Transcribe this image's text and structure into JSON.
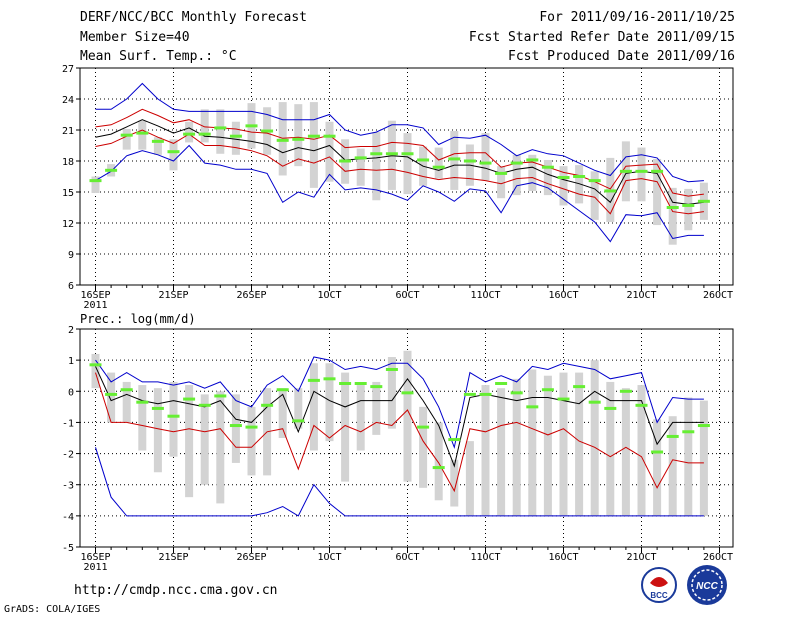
{
  "header": {
    "title": "DERF/NCC/BCC Monthly Forecast",
    "member": "Member Size=40",
    "variable": "Mean Surf. Temp.: °C",
    "period": "For 2011/09/16-2011/10/25",
    "started": "Fcst Started Refer Date 2011/09/15",
    "produced": "Fcst Produced Date 2011/09/16"
  },
  "footer": {
    "url": "http://cmdp.ncc.cma.gov.cn",
    "grads": "GrADS: COLA/IGES",
    "logo1": "BCC",
    "logo2": "NCC"
  },
  "colors": {
    "max": "#0000cc",
    "min": "#0000cc",
    "p_hi": "#cc0000",
    "p_lo": "#cc0000",
    "mean": "#000000",
    "box": "#d3d3d3",
    "obs": "#66ee33"
  },
  "chart_data": [
    {
      "type": "line",
      "title": "Mean Surf. Temp.: °C",
      "ylim": [
        6,
        27
      ],
      "yticks": [
        6,
        9,
        12,
        15,
        18,
        21,
        24,
        27
      ],
      "xlim": [
        1,
        40
      ],
      "xticks": [
        {
          "day": 1,
          "label": "16SEP",
          "sub": "2011"
        },
        {
          "day": 6,
          "label": "21SEP"
        },
        {
          "day": 11,
          "label": "26SEP"
        },
        {
          "day": 16,
          "label": "1OCT"
        },
        {
          "day": 21,
          "label": "6OCT"
        },
        {
          "day": 26,
          "label": "11OCT"
        },
        {
          "day": 31,
          "label": "16OCT"
        },
        {
          "day": 36,
          "label": "21OCT"
        },
        {
          "day": 41,
          "label": "26OCT"
        }
      ],
      "grid": true,
      "x": [
        1,
        2,
        3,
        4,
        5,
        6,
        7,
        8,
        9,
        10,
        11,
        12,
        13,
        14,
        15,
        16,
        17,
        18,
        19,
        20,
        21,
        22,
        23,
        24,
        25,
        26,
        27,
        28,
        29,
        30,
        31,
        32,
        33,
        34,
        35,
        36,
        37,
        38,
        39,
        40
      ],
      "series": [
        {
          "name": "max",
          "values": [
            23,
            23,
            24,
            25.5,
            24,
            23,
            22.8,
            22.8,
            22.8,
            22.8,
            22.8,
            22.5,
            22,
            22,
            22,
            22.5,
            21,
            20.5,
            20.8,
            21.5,
            21.5,
            21.2,
            19.6,
            20.3,
            20.2,
            20.5,
            19.6,
            18.5,
            19.1,
            18.7,
            18.5,
            17.8,
            17.1,
            16.6,
            18.4,
            18.6,
            18.3,
            16.5,
            16,
            16.1
          ]
        },
        {
          "name": "p_hi",
          "values": [
            21.3,
            21.5,
            22.2,
            23,
            22.4,
            21.7,
            22,
            21.3,
            21.2,
            21.1,
            20.8,
            20.7,
            20.2,
            20.3,
            20.1,
            20.5,
            19.3,
            19.4,
            19.4,
            19.8,
            19.7,
            19.5,
            18.1,
            18.7,
            18.8,
            18.8,
            17.4,
            17.8,
            17.9,
            17.4,
            16.9,
            16.6,
            16,
            15.3,
            17.5,
            17.6,
            17.7,
            14.9,
            14.6,
            14.8
          ]
        },
        {
          "name": "mean",
          "values": [
            20.3,
            20.6,
            21.3,
            22,
            21.4,
            20.7,
            21.2,
            20.4,
            20.3,
            20.1,
            19.9,
            19.6,
            18.8,
            19.3,
            19,
            19.5,
            18.1,
            18.2,
            18.3,
            18.5,
            18.4,
            17.5,
            17.1,
            17.6,
            17.6,
            17.3,
            16.8,
            17.2,
            17.4,
            16.7,
            16.2,
            15.8,
            15.3,
            14,
            16.8,
            17,
            16.8,
            14,
            13.8,
            14
          ]
        },
        {
          "name": "p_lo",
          "values": [
            19.4,
            19.7,
            20.4,
            21,
            20.3,
            19.7,
            20.6,
            19.5,
            19.5,
            19.3,
            19,
            18.5,
            17.5,
            18.2,
            17.8,
            18.4,
            17,
            17.2,
            17.1,
            17.2,
            16.9,
            16.5,
            16.2,
            16.4,
            16.3,
            16.1,
            15.8,
            16.3,
            16.4,
            15.8,
            15.3,
            14.8,
            14.5,
            12.9,
            16.1,
            16.3,
            16,
            13.1,
            12.9,
            13.1
          ]
        },
        {
          "name": "min",
          "values": [
            16.1,
            17,
            18.5,
            19,
            18.6,
            18,
            19.5,
            17.8,
            17.6,
            17.2,
            17.2,
            16.8,
            14,
            15,
            14.5,
            16.7,
            15.2,
            15.4,
            15.2,
            14.8,
            14.2,
            15.6,
            15,
            14.1,
            15.3,
            15.1,
            13,
            15.6,
            15.9,
            15.4,
            14.3,
            13.2,
            12.1,
            10.2,
            12.8,
            12.7,
            13,
            10.5,
            10.8,
            10.8
          ]
        }
      ],
      "boxes": [
        {
          "x": 1,
          "lo": 14.9,
          "hi": 16.5
        },
        {
          "x": 2,
          "lo": 16.5,
          "hi": 17.7
        },
        {
          "x": 3,
          "lo": 19.1,
          "hi": 21.1
        },
        {
          "x": 4,
          "lo": 19.1,
          "hi": 21.9
        },
        {
          "x": 5,
          "lo": 18.6,
          "hi": 20.3
        },
        {
          "x": 6,
          "lo": 17.1,
          "hi": 20.1
        },
        {
          "x": 7,
          "lo": 19.8,
          "hi": 21.8
        },
        {
          "x": 8,
          "lo": 19.8,
          "hi": 23
        },
        {
          "x": 9,
          "lo": 18.7,
          "hi": 23
        },
        {
          "x": 10,
          "lo": 18.6,
          "hi": 21.8
        },
        {
          "x": 11,
          "lo": 19.2,
          "hi": 23.6
        },
        {
          "x": 12,
          "lo": 18.6,
          "hi": 23.2
        },
        {
          "x": 13,
          "lo": 16.6,
          "hi": 23.7
        },
        {
          "x": 14,
          "lo": 17.5,
          "hi": 23.5
        },
        {
          "x": 15,
          "lo": 15.4,
          "hi": 23.7
        },
        {
          "x": 16,
          "lo": 16,
          "hi": 21.8
        },
        {
          "x": 17,
          "lo": 15.8,
          "hi": 20.1
        },
        {
          "x": 18,
          "lo": 15.6,
          "hi": 19.2
        },
        {
          "x": 19,
          "lo": 14.2,
          "hi": 20.8
        },
        {
          "x": 20,
          "lo": 15.2,
          "hi": 21.9
        },
        {
          "x": 21,
          "lo": 14.8,
          "hi": 20.7
        },
        {
          "x": 22,
          "lo": 15.6,
          "hi": 19.4
        },
        {
          "x": 23,
          "lo": 16.3,
          "hi": 19.3
        },
        {
          "x": 24,
          "lo": 15.2,
          "hi": 20.9
        },
        {
          "x": 25,
          "lo": 15.6,
          "hi": 19.6
        },
        {
          "x": 26,
          "lo": 16.1,
          "hi": 20.7
        },
        {
          "x": 27,
          "lo": 14.4,
          "hi": 17.5
        },
        {
          "x": 28,
          "lo": 14.7,
          "hi": 18.6
        },
        {
          "x": 29,
          "lo": 15.1,
          "hi": 18.6
        },
        {
          "x": 30,
          "lo": 14.7,
          "hi": 18.1
        },
        {
          "x": 31,
          "lo": 13.7,
          "hi": 17.5
        },
        {
          "x": 32,
          "lo": 13.9,
          "hi": 17.6
        },
        {
          "x": 33,
          "lo": 12.3,
          "hi": 17
        },
        {
          "x": 34,
          "lo": 12.1,
          "hi": 18.3
        },
        {
          "x": 35,
          "lo": 14.1,
          "hi": 19.9
        },
        {
          "x": 36,
          "lo": 14.1,
          "hi": 19.3
        },
        {
          "x": 37,
          "lo": 11.8,
          "hi": 18.2
        },
        {
          "x": 38,
          "lo": 9.9,
          "hi": 15.4
        },
        {
          "x": 39,
          "lo": 11.3,
          "hi": 15.3
        },
        {
          "x": 40,
          "lo": 12.3,
          "hi": 15.9
        }
      ],
      "obs": [
        16.1,
        17.1,
        20.5,
        20.7,
        19.9,
        18.9,
        20.6,
        20.6,
        21.2,
        20.4,
        21.4,
        20.9,
        20,
        20.1,
        20.4,
        20.4,
        18,
        18.3,
        18.7,
        18.7,
        18.7,
        18.1,
        17.4,
        18.2,
        18,
        17.8,
        16.8,
        17.8,
        18.1,
        17.4,
        16.4,
        16.5,
        16.1,
        15.1,
        17,
        17,
        17,
        13.5,
        13.7,
        14.1
      ]
    },
    {
      "type": "line",
      "title": "Prec.: log(mm/d)",
      "ylim": [
        -5,
        2
      ],
      "yticks": [
        -5,
        -4,
        -3,
        -2,
        -1,
        0,
        1,
        2
      ],
      "xlim": [
        1,
        40
      ],
      "xticks": [
        {
          "day": 1,
          "label": "16SEP",
          "sub": "2011"
        },
        {
          "day": 6,
          "label": "21SEP"
        },
        {
          "day": 11,
          "label": "26SEP"
        },
        {
          "day": 16,
          "label": "1OCT"
        },
        {
          "day": 21,
          "label": "6OCT"
        },
        {
          "day": 26,
          "label": "11OCT"
        },
        {
          "day": 31,
          "label": "16OCT"
        },
        {
          "day": 36,
          "label": "21OCT"
        },
        {
          "day": 41,
          "label": "26OCT"
        }
      ],
      "grid": true,
      "x": [
        1,
        2,
        3,
        4,
        5,
        6,
        7,
        8,
        9,
        10,
        11,
        12,
        13,
        14,
        15,
        16,
        17,
        18,
        19,
        20,
        21,
        22,
        23,
        24,
        25,
        26,
        27,
        28,
        29,
        30,
        31,
        32,
        33,
        34,
        35,
        36,
        37,
        38,
        39,
        40
      ],
      "series": [
        {
          "name": "max",
          "values": [
            1,
            0.3,
            0.6,
            0.3,
            0.3,
            0.2,
            0.3,
            0.1,
            0.3,
            -0.3,
            -0.5,
            0.2,
            0.5,
            0,
            1.1,
            1,
            0.7,
            0.8,
            0.7,
            0.9,
            0.9,
            0.4,
            -0.5,
            -1.8,
            0.6,
            0.3,
            0.5,
            0.3,
            0.8,
            0.7,
            0.9,
            0.8,
            0.7,
            0.4,
            0.5,
            0.6,
            -1,
            -0.2,
            -0.25,
            -0.25
          ]
        },
        {
          "name": "mean",
          "values": [
            0.8,
            -0.3,
            -0.1,
            -0.3,
            -0.4,
            -0.3,
            -0.4,
            -0.5,
            -0.3,
            -0.9,
            -1,
            -0.5,
            -0.1,
            -1.3,
            0,
            -0.3,
            -0.5,
            -0.3,
            -0.3,
            -0.3,
            0.4,
            -0.3,
            -1.1,
            -2.4,
            -0.2,
            -0.1,
            -0.2,
            -0.3,
            -0.2,
            -0.2,
            -0.3,
            -0.4,
            0,
            -0.3,
            -0.3,
            -0.3,
            -1.7,
            -1,
            -1,
            -1
          ]
        },
        {
          "name": "p_lo",
          "values": [
            0.6,
            -1,
            -1,
            -1.1,
            -1.2,
            -1.3,
            -1.2,
            -1.3,
            -1.2,
            -1.8,
            -1.8,
            -1.3,
            -1.2,
            -2.5,
            -1.1,
            -1.5,
            -1.1,
            -1.3,
            -1,
            -1.1,
            -0.6,
            -1.6,
            -2.3,
            -3.2,
            -1.2,
            -1.3,
            -1.1,
            -1,
            -1.2,
            -1.4,
            -1.2,
            -1.6,
            -1.8,
            -2.1,
            -1.8,
            -2.1,
            -3.1,
            -2.2,
            -2.3,
            -2.3
          ]
        },
        {
          "name": "min",
          "values": [
            -1.8,
            -3.4,
            -4,
            -4,
            -4,
            -4,
            -4,
            -4,
            -4,
            -4,
            -4,
            -3.9,
            -3.7,
            -4,
            -3,
            -3.6,
            -4,
            -4,
            -4,
            -4,
            -4,
            -4,
            -4,
            -4,
            -4,
            -4,
            -4,
            -4,
            -4,
            -4,
            -4,
            -4,
            -4,
            -4,
            -4,
            -4,
            -4,
            -4,
            -4,
            -4
          ]
        }
      ],
      "boxes": [
        {
          "x": 1,
          "lo": 0.1,
          "hi": 1.2
        },
        {
          "x": 2,
          "lo": -1,
          "hi": 0.6
        },
        {
          "x": 3,
          "lo": -1,
          "hi": 0.3
        },
        {
          "x": 4,
          "lo": -1.9,
          "hi": 0.2
        },
        {
          "x": 5,
          "lo": -2.6,
          "hi": 0.1
        },
        {
          "x": 6,
          "lo": -2.1,
          "hi": 0.3
        },
        {
          "x": 7,
          "lo": -3.4,
          "hi": 0.2
        },
        {
          "x": 8,
          "lo": -3,
          "hi": -0.1
        },
        {
          "x": 9,
          "lo": -3.6,
          "hi": 0
        },
        {
          "x": 10,
          "lo": -2.3,
          "hi": -0.1
        },
        {
          "x": 11,
          "lo": -2.7,
          "hi": -0.5
        },
        {
          "x": 12,
          "lo": -2.7,
          "hi": 0.1
        },
        {
          "x": 13,
          "lo": -1.5,
          "hi": 0.1
        },
        {
          "x": 14,
          "lo": -1.2,
          "hi": 0.1
        },
        {
          "x": 15,
          "lo": -1.9,
          "hi": 0.9
        },
        {
          "x": 16,
          "lo": -1.6,
          "hi": 0.9
        },
        {
          "x": 17,
          "lo": -2.9,
          "hi": 0.6
        },
        {
          "x": 18,
          "lo": -1.9,
          "hi": 0.2
        },
        {
          "x": 19,
          "lo": -1.4,
          "hi": 0.3
        },
        {
          "x": 20,
          "lo": -1.2,
          "hi": 1.1
        },
        {
          "x": 21,
          "lo": -2.9,
          "hi": 1.3
        },
        {
          "x": 22,
          "lo": -3.1,
          "hi": -0.5
        },
        {
          "x": 23,
          "lo": -3.5,
          "hi": -1
        },
        {
          "x": 24,
          "lo": -3.7,
          "hi": -2.2
        },
        {
          "x": 25,
          "lo": -4,
          "hi": -1.6
        },
        {
          "x": 26,
          "lo": -4,
          "hi": 0.2
        },
        {
          "x": 27,
          "lo": -4,
          "hi": 0.1
        },
        {
          "x": 28,
          "lo": -4,
          "hi": 0.4
        },
        {
          "x": 29,
          "lo": -4,
          "hi": 0.7
        },
        {
          "x": 30,
          "lo": -4,
          "hi": 0.5
        },
        {
          "x": 31,
          "lo": -4,
          "hi": 0.6
        },
        {
          "x": 32,
          "lo": -4,
          "hi": 0.6
        },
        {
          "x": 33,
          "lo": -4,
          "hi": 1
        },
        {
          "x": 34,
          "lo": -4,
          "hi": 0.3
        },
        {
          "x": 35,
          "lo": -4,
          "hi": 0.1
        },
        {
          "x": 36,
          "lo": -4,
          "hi": 0.2
        },
        {
          "x": 37,
          "lo": -4,
          "hi": -0.9
        },
        {
          "x": 38,
          "lo": -4,
          "hi": -0.8
        },
        {
          "x": 39,
          "lo": -4,
          "hi": -0.2
        },
        {
          "x": 40,
          "lo": -4,
          "hi": -0.3
        }
      ],
      "obs": [
        0.85,
        -0.1,
        0.05,
        -0.35,
        -0.55,
        -0.8,
        -0.25,
        -0.45,
        -0.15,
        -1.1,
        -1.15,
        -0.45,
        0.05,
        -0.95,
        0.35,
        0.4,
        0.25,
        0.25,
        0.15,
        0.7,
        -0.05,
        -1.15,
        -2.45,
        -1.55,
        -0.1,
        -0.1,
        0.25,
        -0.05,
        -0.5,
        0.05,
        -0.25,
        0.15,
        -0.35,
        -0.55,
        0,
        -0.45,
        -1.95,
        -1.45,
        -1.3,
        -1.1
      ]
    }
  ]
}
